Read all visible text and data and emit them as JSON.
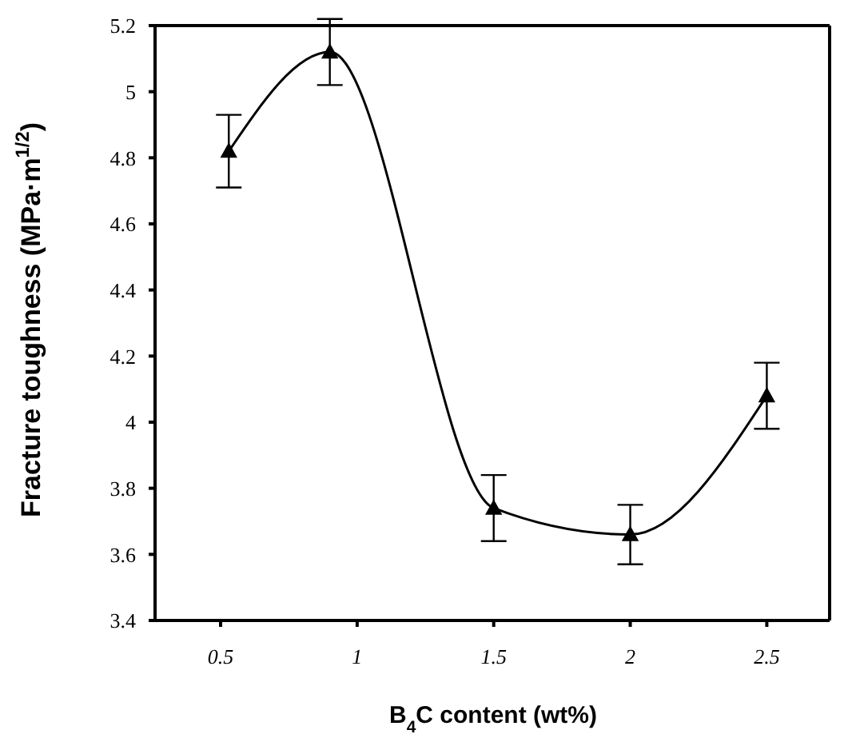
{
  "chart_data": {
    "type": "line",
    "xlabel": "B$_{4}$C content (wt%)",
    "ylabel": "Fracture toughness (MPa·m$^{1/2}$)",
    "x": [
      0.53,
      0.9,
      1.5,
      2,
      2.5
    ],
    "series": [
      {
        "color": "#000000",
        "values": [
          4.82,
          5.12,
          3.74,
          3.66,
          4.08
        ],
        "errors": [
          0.11,
          0.1,
          0.1,
          0.09,
          0.1
        ]
      }
    ],
    "xlim": [
      0.26,
      2.73
    ],
    "xticks": [
      0.5,
      1,
      1.5,
      2,
      2.5
    ],
    "ylim": [
      3.4,
      5.2
    ],
    "yticks": [
      3.4,
      3.6,
      3.8,
      4,
      4.2,
      4.4,
      4.6,
      4.8,
      5,
      5.2
    ],
    "marker": "triangle",
    "line_style": "solid",
    "grid": false,
    "legend": false
  }
}
